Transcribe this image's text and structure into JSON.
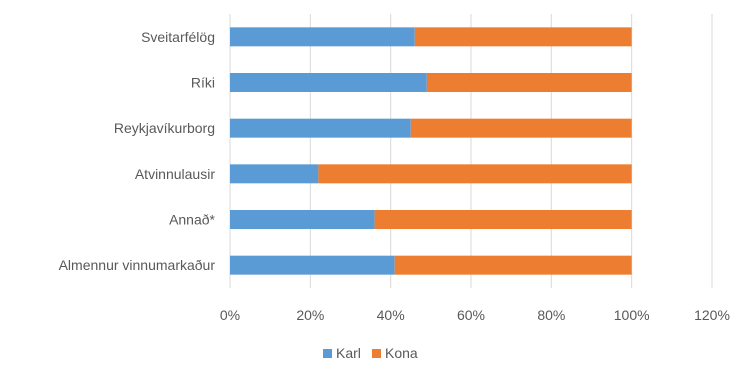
{
  "chart_data": {
    "type": "bar",
    "orientation": "horizontal",
    "stacked": true,
    "categories": [
      "Sveitarfélög",
      "Ríki",
      "Reykjavíkurborg",
      "Atvinnulausir",
      "Annað*",
      "Almennur vinnumarkaður"
    ],
    "series": [
      {
        "name": "Karl",
        "color": "#5b9bd5",
        "values": [
          46,
          49,
          45,
          22,
          36,
          41
        ]
      },
      {
        "name": "Kona",
        "color": "#ed7d31",
        "values": [
          54,
          51,
          55,
          78,
          64,
          59
        ]
      }
    ],
    "xlim": [
      0,
      120
    ],
    "xticks": [
      "0%",
      "20%",
      "40%",
      "60%",
      "80%",
      "100%",
      "120%"
    ],
    "grid": true,
    "legend_position": "bottom"
  }
}
